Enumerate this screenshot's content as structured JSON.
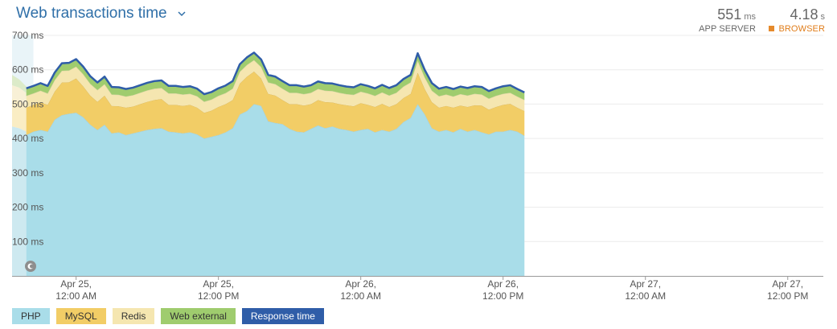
{
  "header": {
    "title": "Web transactions time",
    "app_server_value": "551",
    "app_server_unit": "ms",
    "app_server_label": "APP SERVER",
    "browser_value": "4.18",
    "browser_unit": "s",
    "browser_label": "BROWSER"
  },
  "legend": [
    {
      "label": "PHP",
      "color": "#a9dde9"
    },
    {
      "label": "MySQL",
      "color": "#f2cd66"
    },
    {
      "label": "Redis",
      "color": "#f5e6b0"
    },
    {
      "label": "Web external",
      "color": "#9fcc6e"
    },
    {
      "label": "Response time",
      "color": "#2f5da8",
      "text_color": "#ffffff"
    }
  ],
  "icons": {
    "title_chevron": "chevron-down-icon",
    "reset": "reset-zoom-icon"
  },
  "chart_data": {
    "type": "area",
    "stacked": true,
    "y_ticks": [
      "100 ms",
      "200 ms",
      "300 ms",
      "400 ms",
      "500 ms",
      "600 ms",
      "700 ms"
    ],
    "y_tick_values": [
      100,
      200,
      300,
      400,
      500,
      600,
      700
    ],
    "ylim": [
      0,
      700
    ],
    "x_range": [
      -2,
      112
    ],
    "x_ticks": [
      {
        "x": 7,
        "l1": "Apr 25,",
        "l2": "12:00 AM"
      },
      {
        "x": 27,
        "l1": "Apr 25,",
        "l2": "12:00 PM"
      },
      {
        "x": 47,
        "l1": "Apr 26,",
        "l2": "12:00 AM"
      },
      {
        "x": 67,
        "l1": "Apr 26,",
        "l2": "12:00 PM"
      },
      {
        "x": 87,
        "l1": "Apr 27,",
        "l2": "12:00 AM"
      },
      {
        "x": 107,
        "l1": "Apr 27,",
        "l2": "12:00 PM"
      }
    ],
    "grid": true,
    "highlight_band": {
      "from": -2,
      "to": 1,
      "note": "faded earlier period"
    },
    "faded_series": [
      {
        "name": "PHP",
        "x": [
          -2,
          -1,
          0
        ],
        "values": [
          435,
          430,
          420
        ]
      },
      {
        "name": "MySQL",
        "x": [
          -2,
          -1,
          0
        ],
        "values": [
          80,
          80,
          78
        ]
      },
      {
        "name": "Redis",
        "x": [
          -2,
          -1,
          0
        ],
        "values": [
          40,
          38,
          35
        ]
      },
      {
        "name": "Web external",
        "x": [
          -2,
          -1,
          0
        ],
        "values": [
          30,
          24,
          18
        ]
      }
    ],
    "series": [
      {
        "name": "PHP",
        "color": "#a9dde9",
        "values": [
          410,
          420,
          425,
          420,
          455,
          468,
          472,
          475,
          462,
          440,
          425,
          440,
          415,
          418,
          410,
          415,
          420,
          425,
          428,
          430,
          420,
          418,
          415,
          418,
          412,
          400,
          405,
          410,
          418,
          430,
          470,
          480,
          500,
          495,
          450,
          445,
          442,
          428,
          420,
          418,
          428,
          438,
          430,
          435,
          428,
          425,
          420,
          425,
          428,
          418,
          425,
          420,
          428,
          448,
          460,
          500,
          470,
          430,
          420,
          425,
          418,
          428,
          420,
          425,
          418,
          412,
          420,
          420,
          425,
          420,
          408
        ]
      },
      {
        "name": "MySQL",
        "color": "#f2cd66",
        "values": [
          80,
          78,
          80,
          78,
          82,
          95,
          92,
          100,
          90,
          85,
          82,
          85,
          80,
          76,
          80,
          78,
          80,
          82,
          84,
          85,
          78,
          80,
          80,
          80,
          78,
          75,
          76,
          82,
          82,
          82,
          90,
          100,
          95,
          80,
          80,
          80,
          70,
          72,
          80,
          78,
          72,
          74,
          76,
          70,
          72,
          72,
          74,
          78,
          70,
          74,
          76,
          72,
          72,
          70,
          70,
          92,
          74,
          76,
          70,
          70,
          72,
          68,
          72,
          72,
          78,
          72,
          72,
          78,
          76,
          70,
          72
        ]
      },
      {
        "name": "Redis",
        "color": "#f5e6b0",
        "values": [
          34,
          33,
          34,
          33,
          33,
          34,
          34,
          34,
          35,
          34,
          34,
          33,
          33,
          33,
          32,
          33,
          33,
          33,
          33,
          32,
          33,
          33,
          33,
          32,
          33,
          32,
          32,
          32,
          32,
          33,
          34,
          34,
          33,
          33,
          33,
          33,
          33,
          33,
          33,
          33,
          33,
          32,
          33,
          33,
          33,
          32,
          33,
          33,
          33,
          32,
          33,
          33,
          33,
          33,
          33,
          34,
          33,
          33,
          33,
          33,
          32,
          33,
          33,
          33,
          32,
          32,
          32,
          32,
          32,
          32,
          32
        ]
      },
      {
        "name": "Web external",
        "color": "#9fcc6e",
        "values": [
          22,
          22,
          22,
          22,
          22,
          22,
          22,
          22,
          22,
          22,
          22,
          22,
          22,
          22,
          22,
          22,
          22,
          22,
          22,
          22,
          22,
          22,
          22,
          22,
          22,
          22,
          22,
          22,
          22,
          22,
          22,
          22,
          22,
          22,
          22,
          22,
          22,
          22,
          22,
          22,
          22,
          22,
          22,
          22,
          22,
          22,
          22,
          22,
          22,
          22,
          22,
          22,
          22,
          22,
          22,
          22,
          22,
          22,
          22,
          22,
          22,
          22,
          22,
          22,
          22,
          22,
          22,
          22,
          22,
          22,
          22
        ]
      },
      {
        "name": "Response time",
        "color": "#2f5da8",
        "type": "line",
        "values": [
          546,
          553,
          561,
          553,
          592,
          619,
          620,
          631,
          609,
          581,
          563,
          580,
          550,
          549,
          544,
          548,
          555,
          562,
          567,
          569,
          553,
          553,
          550,
          552,
          545,
          529,
          535,
          546,
          554,
          567,
          616,
          636,
          650,
          630,
          585,
          580,
          567,
          555,
          555,
          551,
          555,
          566,
          561,
          560,
          555,
          551,
          549,
          558,
          553,
          546,
          556,
          547,
          555,
          573,
          585,
          648,
          599,
          561,
          545,
          550,
          544,
          551,
          547,
          552,
          550,
          538,
          546,
          552,
          555,
          544,
          534
        ]
      }
    ]
  }
}
